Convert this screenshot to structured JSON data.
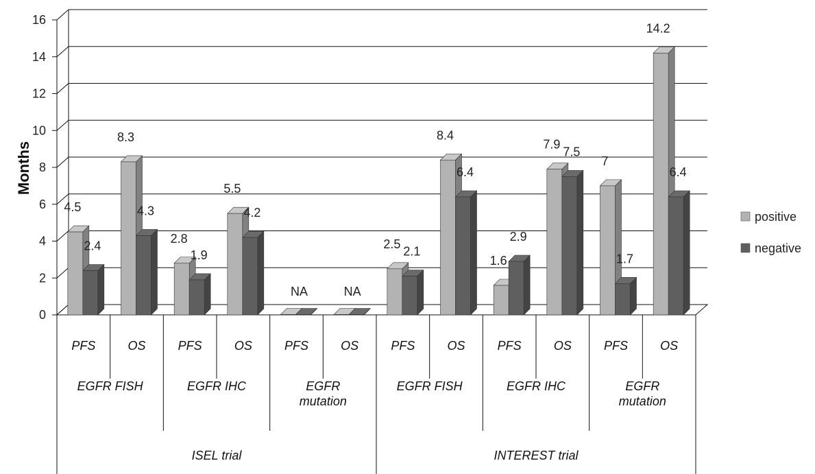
{
  "chart_data": {
    "type": "bar",
    "ylabel": "Months",
    "ylim": [
      0,
      16
    ],
    "yticks": [
      0,
      2,
      4,
      6,
      8,
      10,
      12,
      14,
      16
    ],
    "grid": true,
    "legend_position": "right",
    "colors": {
      "positive": "#b3b3b3",
      "negative": "#5f5f5f"
    },
    "series": [
      {
        "name": "positive",
        "values": [
          4.5,
          8.3,
          2.8,
          5.5,
          0,
          0,
          2.5,
          8.4,
          1.6,
          7.9,
          7,
          14.2
        ]
      },
      {
        "name": "negative",
        "values": [
          2.4,
          4.3,
          1.9,
          4.2,
          0,
          0,
          2.1,
          6.4,
          2.9,
          7.5,
          1.7,
          6.4
        ]
      }
    ],
    "data_labels": {
      "positive": [
        "4.5",
        "8.3",
        "2.8",
        "5.5",
        "NA",
        "NA",
        "2.5",
        "8.4",
        "1.6",
        "7.9",
        "7",
        "14.2"
      ],
      "negative": [
        "2.4",
        "4.3",
        "1.9",
        "4.2",
        "",
        "",
        "2.1",
        "6.4",
        "2.9",
        "7.5",
        "1.7",
        "6.4"
      ]
    },
    "categories": [
      "PFS",
      "OS",
      "PFS",
      "OS",
      "PFS",
      "OS",
      "PFS",
      "OS",
      "PFS",
      "OS",
      "PFS",
      "OS"
    ],
    "groups": [
      {
        "label": [
          "EGFR FISH"
        ],
        "span": 2
      },
      {
        "label": [
          "EGFR IHC"
        ],
        "span": 2
      },
      {
        "label": [
          "EGFR",
          "mutation"
        ],
        "span": 2
      },
      {
        "label": [
          "EGFR FISH"
        ],
        "span": 2
      },
      {
        "label": [
          "EGFR IHC"
        ],
        "span": 2
      },
      {
        "label": [
          "EGFR",
          "mutation"
        ],
        "span": 2
      }
    ],
    "trials": [
      {
        "label": "ISEL trial",
        "span": 6
      },
      {
        "label": "INTEREST trial",
        "span": 6
      }
    ]
  }
}
